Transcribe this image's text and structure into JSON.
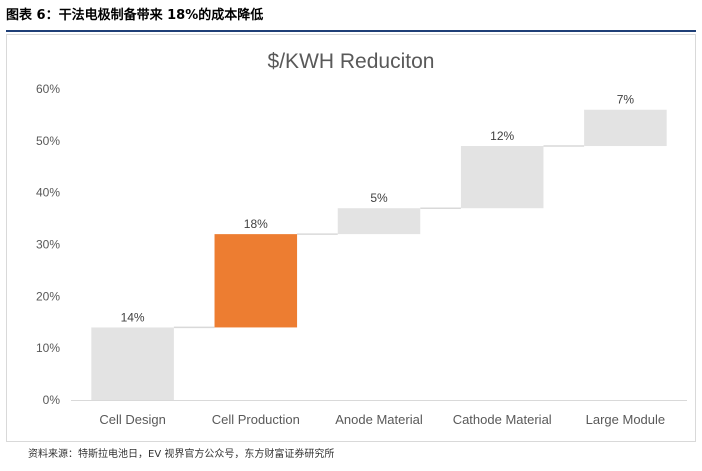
{
  "figure": {
    "caption": "图表 6：干法电极制备带来 18%的成本降低",
    "source": "资料来源：特斯拉电池日，EV 视界官方公众号，东方财富证券研究所"
  },
  "colors": {
    "bar_default": "#e3e3e3",
    "bar_highlight": "#ed7d31",
    "axis_text": "#595959",
    "title_text": "#595959",
    "connector": "#d9d9d9",
    "rule": "#1f3f77"
  },
  "chart_data": {
    "type": "bar",
    "subtype": "waterfall",
    "title": "$/KWH Reduciton",
    "categories": [
      "Cell Design",
      "Cell Production",
      "Anode Material",
      "Cathode Material",
      "Large Module"
    ],
    "values": [
      14,
      18,
      5,
      12,
      7
    ],
    "bases": [
      0,
      14,
      32,
      37,
      49
    ],
    "data_labels": [
      "14%",
      "18%",
      "5%",
      "12%",
      "7%"
    ],
    "highlight_index": 1,
    "ylim": [
      0,
      60
    ],
    "yticks": [
      0,
      10,
      20,
      30,
      40,
      50,
      60
    ],
    "ytick_labels": [
      "0%",
      "10%",
      "20%",
      "30%",
      "40%",
      "50%",
      "60%"
    ],
    "xlabel": "",
    "ylabel": "",
    "grid": false,
    "legend": "none"
  }
}
